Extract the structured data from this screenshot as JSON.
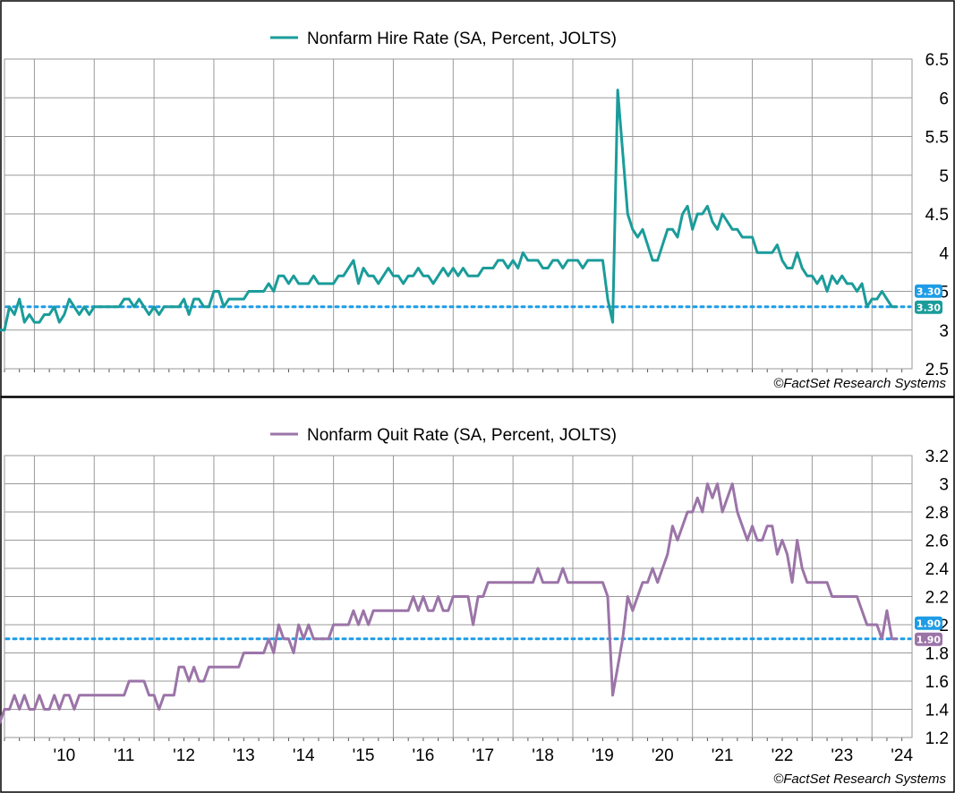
{
  "colors": {
    "hire_line": "#1a9c9a",
    "quit_line": "#9b74a8",
    "reference_line": "#1e9ce6",
    "badge_blue": "#1e9ce6",
    "grid": "#9a9a9a"
  },
  "chart_data": [
    {
      "type": "line",
      "legend": "Nonfarm Hire Rate (SA, Percent, JOLTS)",
      "credit": "©FactSet Research Systems",
      "ylim": [
        2.5,
        6.5
      ],
      "yticks": [
        "2.5",
        "3",
        "3.5",
        "4",
        "4.5",
        "5",
        "5.5",
        "6",
        "6.5"
      ],
      "xlim": [
        2009.5,
        2024.67
      ],
      "reference_value": 3.3,
      "last_value_labels": [
        "3.30",
        "3.30"
      ],
      "series": [
        {
          "x_start": "2009-06",
          "frequency": "monthly",
          "values": [
            3.0,
            3.0,
            3.3,
            3.2,
            3.4,
            3.1,
            3.2,
            3.1,
            3.1,
            3.2,
            3.2,
            3.3,
            3.1,
            3.2,
            3.4,
            3.3,
            3.2,
            3.3,
            3.2,
            3.3,
            3.3,
            3.3,
            3.3,
            3.3,
            3.3,
            3.4,
            3.4,
            3.3,
            3.4,
            3.3,
            3.2,
            3.3,
            3.2,
            3.3,
            3.3,
            3.3,
            3.3,
            3.4,
            3.2,
            3.4,
            3.4,
            3.3,
            3.3,
            3.5,
            3.5,
            3.3,
            3.4,
            3.4,
            3.4,
            3.4,
            3.5,
            3.5,
            3.5,
            3.5,
            3.6,
            3.5,
            3.7,
            3.7,
            3.6,
            3.7,
            3.6,
            3.6,
            3.6,
            3.7,
            3.6,
            3.6,
            3.6,
            3.6,
            3.7,
            3.7,
            3.8,
            3.9,
            3.6,
            3.8,
            3.7,
            3.7,
            3.6,
            3.7,
            3.8,
            3.7,
            3.7,
            3.6,
            3.7,
            3.7,
            3.8,
            3.7,
            3.7,
            3.6,
            3.7,
            3.8,
            3.7,
            3.8,
            3.7,
            3.8,
            3.7,
            3.7,
            3.7,
            3.8,
            3.8,
            3.8,
            3.9,
            3.9,
            3.8,
            3.9,
            3.8,
            4.0,
            3.9,
            3.9,
            3.9,
            3.8,
            3.8,
            3.9,
            3.9,
            3.8,
            3.9,
            3.9,
            3.9,
            3.8,
            3.9,
            3.9,
            3.9,
            3.9,
            3.4,
            3.1,
            6.1,
            5.3,
            4.5,
            4.3,
            4.2,
            4.3,
            4.1,
            3.9,
            3.9,
            4.1,
            4.3,
            4.3,
            4.2,
            4.5,
            4.6,
            4.3,
            4.5,
            4.5,
            4.6,
            4.4,
            4.3,
            4.5,
            4.4,
            4.3,
            4.3,
            4.2,
            4.2,
            4.2,
            4.0,
            4.0,
            4.0,
            4.0,
            4.1,
            3.9,
            3.8,
            3.8,
            4.0,
            3.8,
            3.7,
            3.7,
            3.6,
            3.7,
            3.5,
            3.7,
            3.6,
            3.7,
            3.6,
            3.6,
            3.5,
            3.6,
            3.3,
            3.4,
            3.4,
            3.5,
            3.4,
            3.3,
            3.3
          ]
        }
      ]
    },
    {
      "type": "line",
      "legend": "Nonfarm Quit Rate (SA, Percent, JOLTS)",
      "credit": "©FactSet Research Systems",
      "ylim": [
        1.2,
        3.2
      ],
      "yticks": [
        "1.2",
        "1.4",
        "1.6",
        "1.8",
        "2",
        "2.2",
        "2.4",
        "2.6",
        "2.8",
        "3",
        "3.2"
      ],
      "xlim": [
        2009.5,
        2024.67
      ],
      "xticks": [
        "'10",
        "'11",
        "'12",
        "'13",
        "'14",
        "'15",
        "'16",
        "'17",
        "'18",
        "'19",
        "'20",
        "'21",
        "'22",
        "'23",
        "'24"
      ],
      "reference_value": 1.9,
      "last_value_labels": [
        "1.90",
        "1.90"
      ],
      "series": [
        {
          "x_start": "2009-06",
          "frequency": "monthly",
          "values": [
            1.3,
            1.4,
            1.4,
            1.5,
            1.4,
            1.5,
            1.4,
            1.4,
            1.5,
            1.4,
            1.4,
            1.5,
            1.4,
            1.5,
            1.5,
            1.4,
            1.5,
            1.5,
            1.5,
            1.5,
            1.5,
            1.5,
            1.5,
            1.5,
            1.5,
            1.5,
            1.6,
            1.6,
            1.6,
            1.6,
            1.5,
            1.5,
            1.4,
            1.5,
            1.5,
            1.5,
            1.7,
            1.7,
            1.6,
            1.7,
            1.6,
            1.6,
            1.7,
            1.7,
            1.7,
            1.7,
            1.7,
            1.7,
            1.7,
            1.8,
            1.8,
            1.8,
            1.8,
            1.8,
            1.9,
            1.8,
            2.0,
            1.9,
            1.9,
            1.8,
            2.0,
            1.9,
            2.0,
            1.9,
            1.9,
            1.9,
            1.9,
            2.0,
            2.0,
            2.0,
            2.0,
            2.1,
            2.0,
            2.1,
            2.0,
            2.1,
            2.1,
            2.1,
            2.1,
            2.1,
            2.1,
            2.1,
            2.1,
            2.2,
            2.1,
            2.2,
            2.1,
            2.1,
            2.2,
            2.1,
            2.1,
            2.2,
            2.2,
            2.2,
            2.2,
            2.0,
            2.2,
            2.2,
            2.3,
            2.3,
            2.3,
            2.3,
            2.3,
            2.3,
            2.3,
            2.3,
            2.3,
            2.3,
            2.4,
            2.3,
            2.3,
            2.3,
            2.3,
            2.4,
            2.3,
            2.3,
            2.3,
            2.3,
            2.3,
            2.3,
            2.3,
            2.3,
            2.2,
            1.5,
            1.7,
            1.9,
            2.2,
            2.1,
            2.2,
            2.3,
            2.3,
            2.4,
            2.3,
            2.4,
            2.5,
            2.7,
            2.6,
            2.7,
            2.8,
            2.8,
            2.9,
            2.8,
            3.0,
            2.9,
            3.0,
            2.8,
            2.9,
            3.0,
            2.8,
            2.7,
            2.6,
            2.7,
            2.6,
            2.6,
            2.7,
            2.7,
            2.5,
            2.6,
            2.5,
            2.3,
            2.6,
            2.4,
            2.3,
            2.3,
            2.3,
            2.3,
            2.3,
            2.2,
            2.2,
            2.2,
            2.2,
            2.2,
            2.2,
            2.1,
            2.0,
            2.0,
            2.0,
            1.9,
            2.1,
            1.9,
            1.9
          ]
        }
      ]
    }
  ]
}
